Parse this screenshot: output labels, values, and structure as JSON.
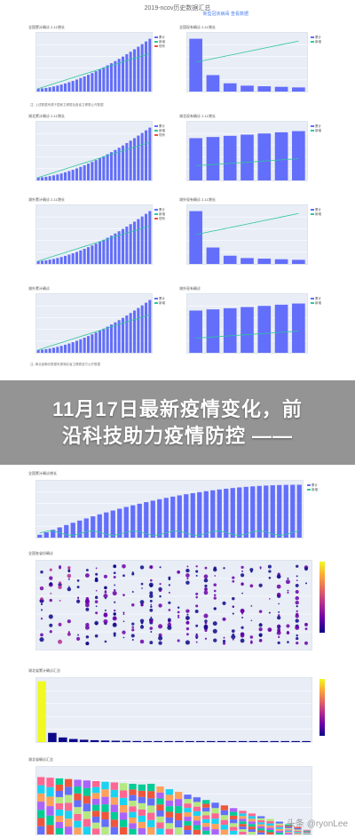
{
  "header": {
    "title": "2019-ncov历史数据汇总",
    "links": "新型冠状病毒 查看数据"
  },
  "banner": {
    "line1": "11月17日最新疫情变化，前",
    "line2": "沿科技助力疫情防控 ——"
  },
  "panels": {
    "p1": {
      "title": "全国累计确诊 2-11增长"
    },
    "p2": {
      "title": "全国现有确诊 2-11增长"
    },
    "p3": {
      "title": "湖北累计确诊 2-11增长"
    },
    "p4": {
      "title": "湖北现有确诊 2-11增长"
    },
    "p5": {
      "title": "湖外累计确诊 2-11增长"
    },
    "p6": {
      "title": "湖外现有确诊 2-11增长"
    },
    "p7": {
      "title": "湖外累计确诊"
    },
    "p8": {
      "title": "湖外现有确诊"
    },
    "p9": {
      "title": "全国累计确诊增长"
    },
    "p10": {
      "title": "全国各省份确诊"
    },
    "p11": {
      "title": "湖北省累计确诊汇总"
    },
    "p12": {
      "title": "湖北省确诊汇总"
    }
  },
  "notes": {
    "n1": "注: 上述数据来源于国家卫健委及各省卫健委公开数据",
    "n2": "注: 湖北省确诊数据来源湖北省卫健委官方公开数据"
  },
  "legend": {
    "a": "累计",
    "b": "新增",
    "c": "现有"
  },
  "watermark": "头条 @ryonLee",
  "colors": {
    "bar": "#636efa",
    "line_green": "#2fc79b",
    "line_red": "#ef553b",
    "plot_bg": "#e8edf6"
  }
}
